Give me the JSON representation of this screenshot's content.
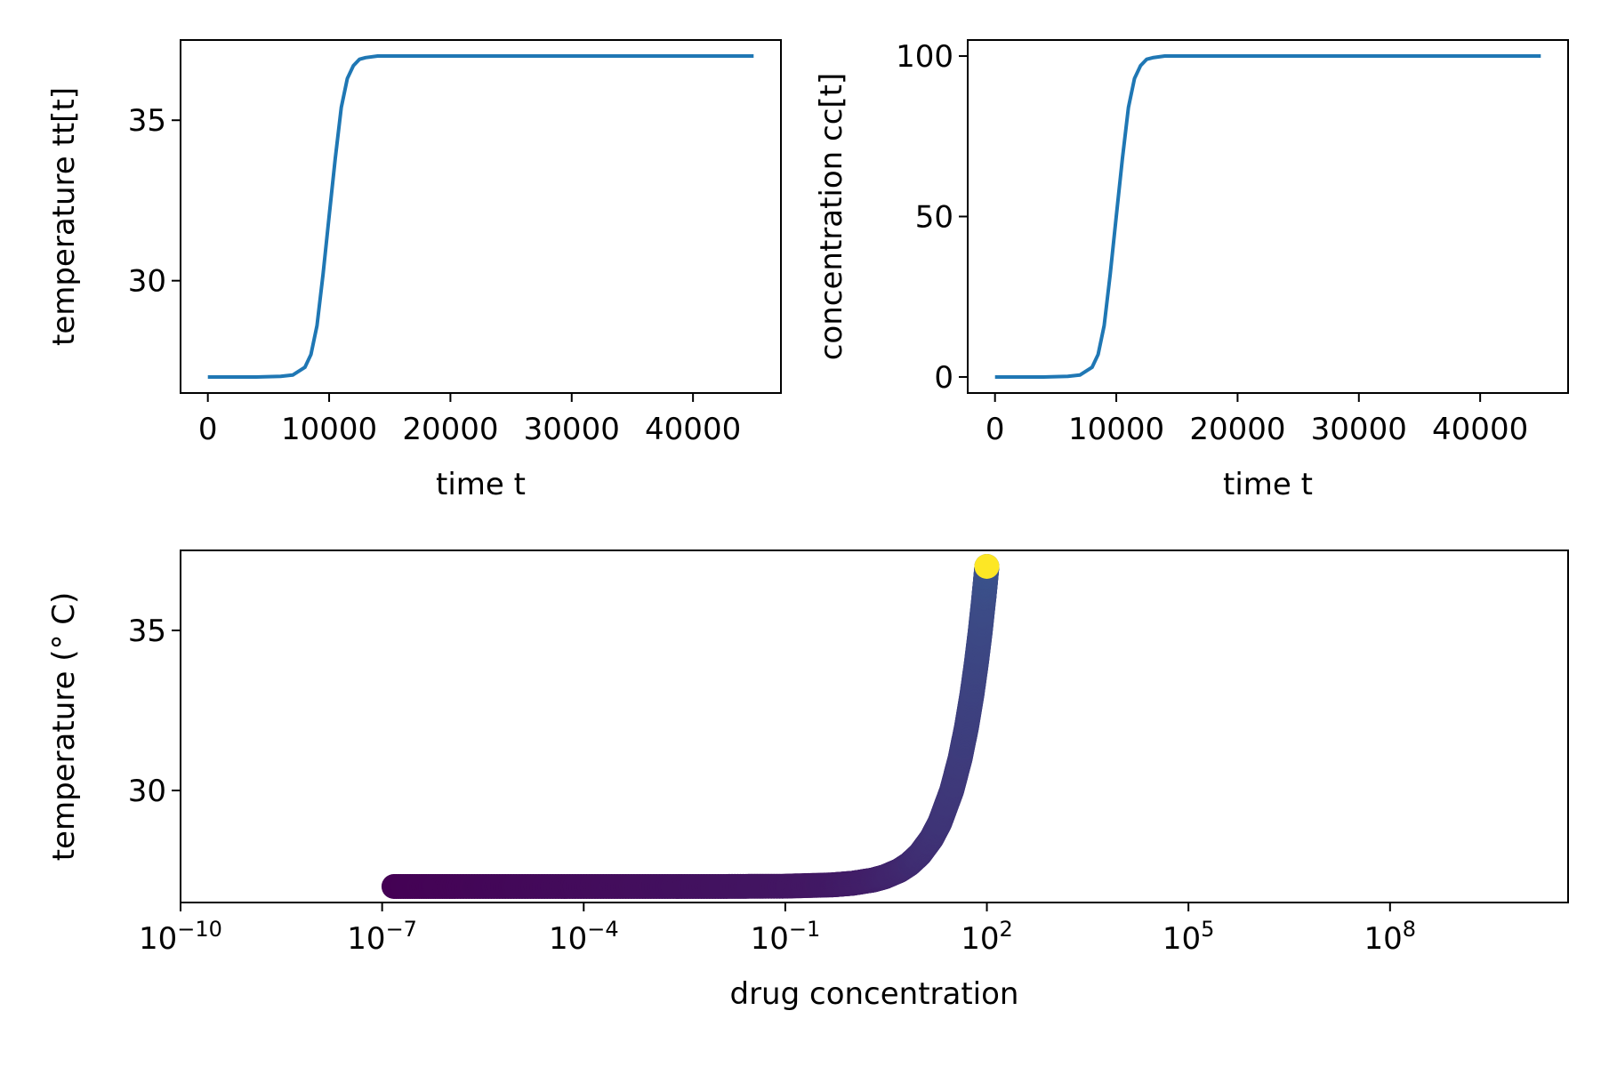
{
  "chart_data": [
    {
      "type": "line",
      "xlabel": "time t",
      "ylabel": "temperature tt[t]",
      "xlim": [
        -2250,
        47250
      ],
      "ylim": [
        26.5,
        37.5
      ],
      "xticks": [
        0,
        10000,
        20000,
        30000,
        40000
      ],
      "xtick_labels": [
        "0",
        "10000",
        "20000",
        "30000",
        "40000"
      ],
      "yticks": [
        30,
        35
      ],
      "ytick_labels": [
        "30",
        "35"
      ],
      "color": "#1f77b4",
      "series": [
        {
          "x": [
            0,
            2000,
            4000,
            6000,
            7000,
            8000,
            8500,
            9000,
            9500,
            10000,
            10500,
            11000,
            11500,
            12000,
            12500,
            13000,
            14000,
            16000,
            20000,
            30000,
            45000
          ],
          "y": [
            27.0,
            27.0,
            27.0,
            27.02,
            27.06,
            27.3,
            27.7,
            28.6,
            30.2,
            32.0,
            33.8,
            35.4,
            36.3,
            36.7,
            36.9,
            36.95,
            37.0,
            37.0,
            37.0,
            37.0,
            37.0
          ]
        }
      ]
    },
    {
      "type": "line",
      "xlabel": "time t",
      "ylabel": "concentration cc[t]",
      "xlim": [
        -2250,
        47250
      ],
      "ylim": [
        -5,
        105
      ],
      "xticks": [
        0,
        10000,
        20000,
        30000,
        40000
      ],
      "xtick_labels": [
        "0",
        "10000",
        "20000",
        "30000",
        "40000"
      ],
      "yticks": [
        0,
        50,
        100
      ],
      "ytick_labels": [
        "0",
        "50",
        "100"
      ],
      "color": "#1f77b4",
      "series": [
        {
          "x": [
            0,
            2000,
            4000,
            6000,
            7000,
            8000,
            8500,
            9000,
            9500,
            10000,
            10500,
            11000,
            11500,
            12000,
            12500,
            13000,
            14000,
            16000,
            20000,
            30000,
            45000
          ],
          "y": [
            0,
            0,
            0,
            0.2,
            0.6,
            3,
            7,
            16,
            32,
            50,
            68,
            84,
            93,
            97,
            99,
            99.5,
            100,
            100,
            100,
            100,
            100
          ]
        }
      ]
    },
    {
      "type": "scatter",
      "xlabel": "drug concentration",
      "ylabel": "temperature (° C)",
      "xscale": "log",
      "xlim_exp": [
        -10,
        10.65
      ],
      "ylim": [
        26.5,
        37.5
      ],
      "xticks_exp": [
        -10,
        -7,
        -4,
        -1,
        2,
        5,
        8
      ],
      "xtick_labels": [
        {
          "base": "10",
          "exp": "−10"
        },
        {
          "base": "10",
          "exp": "−7"
        },
        {
          "base": "10",
          "exp": "−4"
        },
        {
          "base": "10",
          "exp": "−1"
        },
        {
          "base": "10",
          "exp": "2"
        },
        {
          "base": "10",
          "exp": "5"
        },
        {
          "base": "10",
          "exp": "8"
        }
      ],
      "yticks": [
        30,
        35
      ],
      "ytick_labels": [
        "30",
        "35"
      ],
      "colormap": "viridis",
      "color_start": "#440154",
      "color_mid": "#3b528b",
      "color_end": "#fde725",
      "points_note_x_unit": "drug concentration",
      "series": [
        {
          "x": [
            1.5e-07,
            1e-06,
            1e-05,
            0.0001,
            0.001,
            0.01,
            0.1,
            0.5,
            1,
            2,
            3,
            5,
            7,
            10,
            15,
            20,
            30,
            40,
            50,
            60,
            70,
            80,
            90,
            95,
            100
          ],
          "y": [
            27.0,
            27.0,
            27.0,
            27.0,
            27.0,
            27.0,
            27.01,
            27.05,
            27.1,
            27.2,
            27.3,
            27.5,
            27.7,
            28.0,
            28.5,
            29.0,
            30.0,
            31.0,
            32.0,
            33.0,
            34.0,
            35.0,
            36.0,
            36.5,
            37.0
          ]
        }
      ]
    }
  ]
}
